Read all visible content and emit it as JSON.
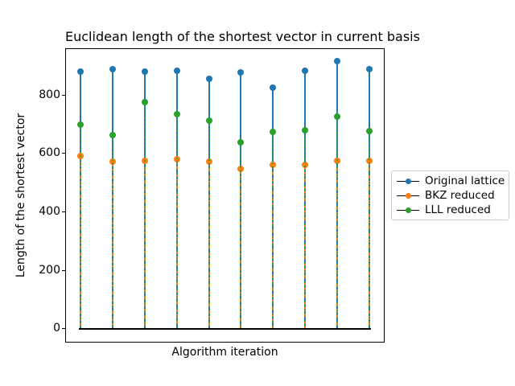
{
  "chart_data": {
    "type": "stem",
    "title": "Euclidean length of the shortest vector in current basis",
    "xlabel": "Algorithm iteration",
    "ylabel": "Length of the shortest vector",
    "x": [
      1,
      2,
      3,
      4,
      5,
      6,
      7,
      8,
      9,
      10
    ],
    "series": [
      {
        "name": "Original lattice",
        "color": "#1f77b4",
        "line_style": "solid",
        "values": [
          881,
          890,
          881,
          884,
          855,
          879,
          826,
          884,
          918,
          888
        ]
      },
      {
        "name": "BKZ reduced",
        "color": "#ff7f0e",
        "line_style": "dashed",
        "values": [
          592,
          571,
          574,
          580,
          571,
          547,
          562,
          562,
          576,
          574
        ]
      },
      {
        "name": "LLL reduced",
        "color": "#2ca02c",
        "line_style": "dotted",
        "values": [
          698,
          663,
          775,
          736,
          713,
          639,
          675,
          680,
          727,
          677
        ]
      }
    ],
    "yticks": [
      0,
      200,
      400,
      600,
      800
    ],
    "ylim": [
      -45,
      958
    ],
    "xlim": [
      0.55,
      10.45
    ],
    "x_tick_labels_visible": false,
    "grid": false,
    "baseline": {
      "value": 0,
      "color": "#000000"
    },
    "legend": {
      "position": "outside-center-right",
      "border_color": "#cccccc"
    }
  }
}
